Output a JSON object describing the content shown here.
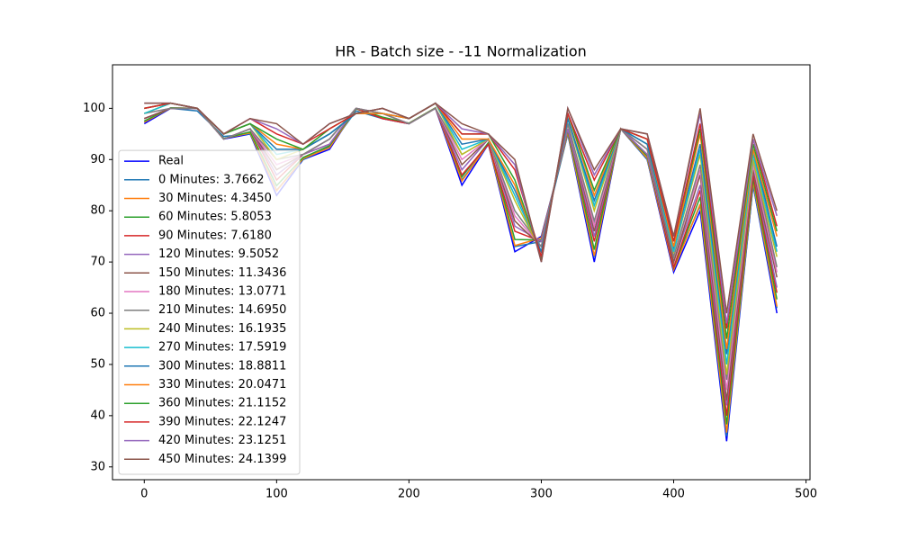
{
  "chart_data": {
    "type": "line",
    "title": "HR - Batch size - -11 Normalization",
    "x": [
      0,
      20,
      40,
      60,
      80,
      100,
      120,
      140,
      160,
      180,
      200,
      220,
      240,
      260,
      280,
      300,
      320,
      340,
      360,
      380,
      400,
      420,
      440,
      460,
      478
    ],
    "xlim": [
      -24,
      503
    ],
    "xticks": [
      0,
      100,
      200,
      300,
      400,
      500
    ],
    "ylim": [
      27.5,
      108.5
    ],
    "yticks": [
      30,
      40,
      50,
      60,
      70,
      80,
      90,
      100
    ],
    "legend": "lower left",
    "series": [
      {
        "name": "Real",
        "color": "#0000ff",
        "values": [
          97,
          100,
          100,
          94,
          95,
          83,
          90,
          92,
          100,
          98,
          97,
          100,
          85,
          93,
          72,
          75,
          95,
          70,
          96,
          90,
          68,
          80,
          35,
          85,
          60
        ]
      },
      {
        "name": "0 Minutes: 3.7662",
        "color": "#1f77b4",
        "values": [
          97.5,
          100,
          99.5,
          94.5,
          95,
          84,
          90,
          92.5,
          99.5,
          98,
          97,
          100,
          86,
          93,
          73,
          74,
          95,
          71,
          96,
          90,
          69,
          81,
          36,
          85,
          61
        ]
      },
      {
        "name": "30 Minutes: 4.3450",
        "color": "#ff7f0e",
        "values": [
          97.3,
          100.1,
          100,
          94.1,
          95.2,
          83.9,
          90.2,
          92.3,
          99.9,
          98.1,
          97.1,
          100.1,
          85.8,
          93.1,
          73.2,
          74.7,
          95.3,
          71.2,
          96,
          90.3,
          68.5,
          81.3,
          36.7,
          85.7,
          61.3
        ]
      },
      {
        "name": "60 Minutes: 5.8053",
        "color": "#2ca02c",
        "values": [
          97.5,
          100.1,
          100,
          94.1,
          95.4,
          84.9,
          90.4,
          92.7,
          99.9,
          98.3,
          97.1,
          100.1,
          86.6,
          93.3,
          74.4,
          74.3,
          95.7,
          72.4,
          96,
          90.7,
          68.9,
          82.7,
          38.3,
          86.3,
          62.7
        ]
      },
      {
        "name": "90 Minutes: 7.6180",
        "color": "#d62728",
        "values": [
          98,
          100,
          100,
          94,
          96,
          86,
          91,
          93,
          100,
          98,
          97,
          100,
          87,
          93,
          76,
          74,
          96,
          74,
          96,
          91,
          69,
          84,
          40,
          87,
          64
        ]
      },
      {
        "name": "120 Minutes: 9.5052",
        "color": "#9467bd",
        "values": [
          98,
          100,
          100,
          94,
          96,
          87,
          91,
          93,
          100,
          99,
          97,
          100,
          88,
          94,
          77,
          74,
          96,
          75,
          96,
          91,
          70,
          85,
          42,
          88,
          65
        ]
      },
      {
        "name": "150 Minutes: 11.3436",
        "color": "#8c564b",
        "values": [
          98,
          100,
          100,
          94,
          96,
          88,
          91,
          94,
          100,
          99,
          97,
          100,
          89,
          94,
          78,
          73,
          97,
          76,
          96,
          92,
          70,
          87,
          43,
          88,
          67
        ]
      },
      {
        "name": "180 Minutes: 13.0771",
        "color": "#e377c2",
        "values": [
          99,
          100,
          100,
          94,
          96,
          89,
          91,
          94,
          100,
          99,
          97,
          100,
          90,
          94,
          79,
          73,
          97,
          77,
          96,
          92,
          71,
          88,
          45,
          89,
          68
        ]
      },
      {
        "name": "210 Minutes: 14.6950",
        "color": "#7f7f7f",
        "values": [
          99,
          100,
          100,
          94,
          96,
          90,
          91,
          94,
          100,
          99,
          97,
          100,
          91,
          94,
          80,
          73,
          97,
          78,
          96,
          92,
          71,
          89,
          47,
          90,
          69
        ]
      },
      {
        "name": "240 Minutes: 16.1935",
        "color": "#bcbd22",
        "values": [
          99,
          101,
          100,
          95,
          97,
          90,
          92,
          95,
          99,
          99,
          98,
          101,
          91,
          94,
          82,
          72,
          98,
          80,
          96,
          93,
          72,
          91,
          48,
          90,
          71
        ]
      },
      {
        "name": "270 Minutes: 17.5919",
        "color": "#17becf",
        "values": [
          99,
          101,
          100,
          95,
          97,
          91,
          92,
          95,
          99,
          99,
          98,
          101,
          92,
          94,
          83,
          72,
          98,
          81,
          96,
          93,
          72,
          92,
          50,
          91,
          72
        ]
      },
      {
        "name": "300 Minutes: 18.8811",
        "color": "#1f77b4",
        "values": [
          100,
          101,
          100,
          95,
          97,
          92,
          92,
          95,
          99,
          99,
          98,
          101,
          93,
          94,
          84,
          72,
          98,
          82,
          96,
          93,
          73,
          93,
          52,
          92,
          73
        ]
      },
      {
        "name": "330 Minutes: 20.0471",
        "color": "#ff7f0e",
        "values": [
          100,
          101,
          100,
          95,
          97,
          93,
          92,
          96,
          99,
          99,
          98,
          101,
          94,
          94,
          85,
          71,
          99,
          83,
          96,
          94,
          73,
          95,
          53,
          92,
          75
        ]
      },
      {
        "name": "360 Minutes: 21.1152",
        "color": "#2ca02c",
        "values": [
          100,
          101,
          100,
          95,
          97,
          94,
          92,
          96,
          99,
          100,
          98,
          101,
          95,
          95,
          86,
          71,
          99,
          84,
          96,
          94,
          74,
          96,
          55,
          93,
          76
        ]
      },
      {
        "name": "390 Minutes: 22.1247",
        "color": "#d62728",
        "values": [
          100,
          101,
          100,
          95,
          98,
          95,
          93,
          96,
          99,
          100,
          98,
          101,
          95,
          95,
          88,
          71,
          99,
          86,
          96,
          94,
          74,
          97,
          57,
          94,
          77
        ]
      },
      {
        "name": "420 Minutes: 23.1251",
        "color": "#9467bd",
        "values": [
          101,
          101,
          100,
          95,
          98,
          96,
          93,
          97,
          99,
          100,
          98,
          101,
          96,
          95,
          89,
          70,
          100,
          87,
          96,
          95,
          75,
          99,
          58,
          94,
          79
        ]
      },
      {
        "name": "450 Minutes: 24.1399",
        "color": "#8c564b",
        "values": [
          101,
          101,
          100,
          95,
          98,
          97,
          93,
          97,
          99,
          100,
          98,
          101,
          97,
          95,
          90,
          70,
          100,
          88,
          96,
          95,
          75,
          100,
          60,
          95,
          80
        ]
      }
    ]
  }
}
